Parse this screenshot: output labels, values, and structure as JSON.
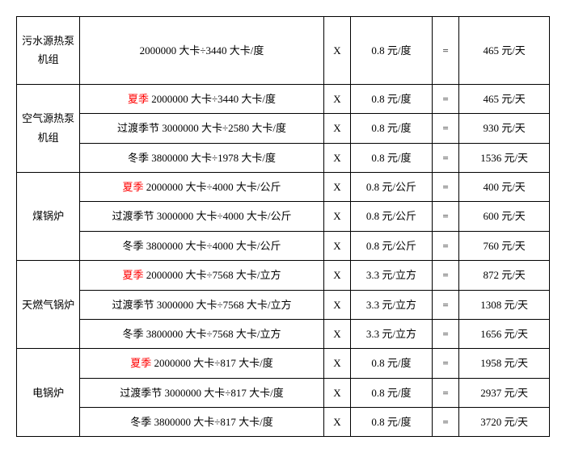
{
  "colors": {
    "summer_color": "#ff0000",
    "text_color": "#000000",
    "border_color": "#000000",
    "bg_color": "#ffffff"
  },
  "labels": {
    "summer": "夏季",
    "transition": "过渡季节",
    "winter": "冬季"
  },
  "symbols": {
    "mult": "X",
    "eq": "="
  },
  "groups": [
    {
      "name": "污水源热泵机组",
      "rows": [
        {
          "season": "",
          "formula": "2000000 大卡÷3440 大卡/度",
          "price": "0.8 元/度",
          "result": "465 元/天"
        }
      ]
    },
    {
      "name": "空气源热泵机组",
      "rows": [
        {
          "season": "夏季",
          "formula": " 2000000 大卡÷3440 大卡/度",
          "price": "0.8 元/度",
          "result": "465 元/天"
        },
        {
          "season": "",
          "formula": "过渡季节 3000000 大卡÷2580 大卡/度",
          "price": "0.8 元/度",
          "result": "930 元/天"
        },
        {
          "season": "",
          "formula": "冬季 3800000 大卡÷1978 大卡/度",
          "price": "0.8 元/度",
          "result": "1536 元/天"
        }
      ]
    },
    {
      "name": "煤锅炉",
      "rows": [
        {
          "season": "夏季",
          "formula": " 2000000 大卡÷4000 大卡/公斤",
          "price": "0.8 元/公斤",
          "result": "400 元/天"
        },
        {
          "season": "",
          "formula": "过渡季节 3000000 大卡÷4000 大卡/公斤",
          "price": "0.8 元/公斤",
          "result": "600 元/天"
        },
        {
          "season": "",
          "formula": "冬季 3800000 大卡÷4000 大卡/公斤",
          "price": "0.8 元/公斤",
          "result": "760 元/天"
        }
      ]
    },
    {
      "name": "天燃气锅炉",
      "rows": [
        {
          "season": "夏季",
          "formula": " 2000000 大卡÷7568 大卡/立方",
          "price": "3.3 元/立方",
          "result": "872 元/天"
        },
        {
          "season": "",
          "formula": "过渡季节 3000000 大卡÷7568 大卡/立方",
          "price": "3.3 元/立方",
          "result": "1308 元/天"
        },
        {
          "season": "",
          "formula": "冬季 3800000 大卡÷7568 大卡/立方",
          "price": "3.3 元/立方",
          "result": "1656 元/天"
        }
      ]
    },
    {
      "name": "电锅炉",
      "rows": [
        {
          "season": "夏季",
          "formula": " 2000000 大卡÷817 大卡/度",
          "price": "0.8 元/度",
          "result": "1958 元/天"
        },
        {
          "season": "",
          "formula": "过渡季节 3000000 大卡÷817 大卡/度",
          "price": "0.8 元/度",
          "result": "2937 元/天"
        },
        {
          "season": "",
          "formula": "冬季 3800000 大卡÷817 大卡/度",
          "price": "0.8 元/度",
          "result": "3720 元/天"
        }
      ]
    }
  ]
}
